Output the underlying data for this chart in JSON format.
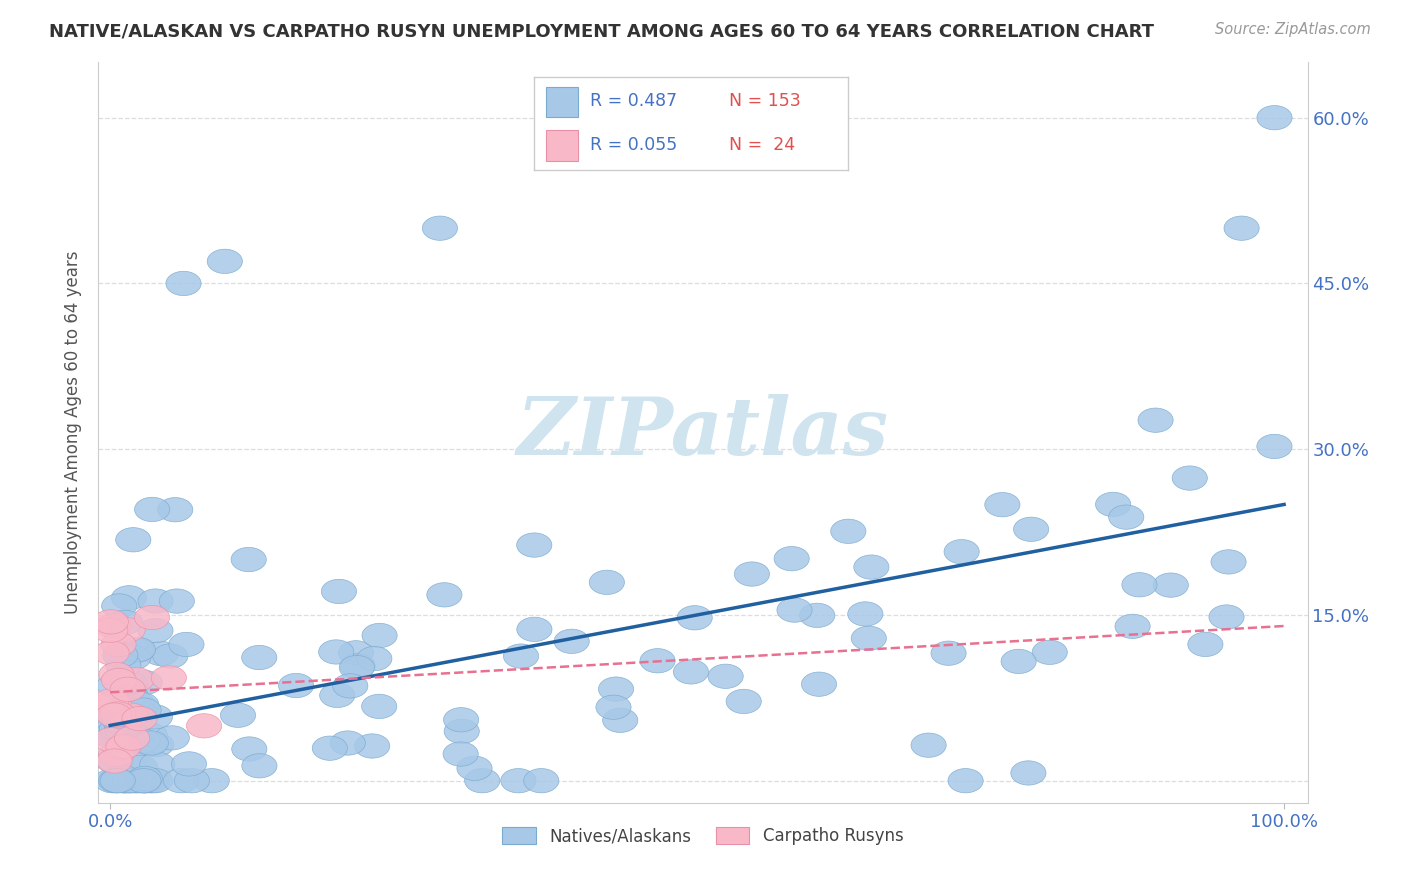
{
  "title": "NATIVE/ALASKAN VS CARPATHO RUSYN UNEMPLOYMENT AMONG AGES 60 TO 64 YEARS CORRELATION CHART",
  "source": "Source: ZipAtlas.com",
  "ylabel": "Unemployment Among Ages 60 to 64 years",
  "y_tick_vals": [
    0,
    15,
    30,
    45,
    60
  ],
  "y_tick_labels": [
    "",
    "15.0%",
    "30.0%",
    "45.0%",
    "60.0%"
  ],
  "x_tick_labels": [
    "0.0%",
    "100.0%"
  ],
  "x_range": [
    0,
    100
  ],
  "y_range": [
    -2,
    65
  ],
  "blue_color": "#A8C8E8",
  "blue_edge": "#7AAACE",
  "pink_color": "#F8B8C8",
  "pink_edge": "#E890A8",
  "line_blue": "#2060A0",
  "line_pink": "#E87090",
  "watermark_text": "ZIPatlas",
  "watermark_color": "#D0E4F0",
  "grid_color": "#DDDDDD",
  "title_color": "#333333",
  "source_color": "#999999",
  "tick_color": "#4472C4",
  "ylabel_color": "#555555",
  "blue_line_x0": 0,
  "blue_line_x1": 100,
  "blue_line_y0": 5.0,
  "blue_line_y1": 25.0,
  "pink_line_x0": 0,
  "pink_line_x1": 100,
  "pink_line_y0": 8.0,
  "pink_line_y1": 14.0,
  "legend_items": [
    {
      "color": "#A8C8E8",
      "edge": "#7AAACE",
      "r": "0.487",
      "n": "153"
    },
    {
      "color": "#F8B8C8",
      "edge": "#E890A8",
      "r": "0.055",
      "n": " 24"
    }
  ]
}
